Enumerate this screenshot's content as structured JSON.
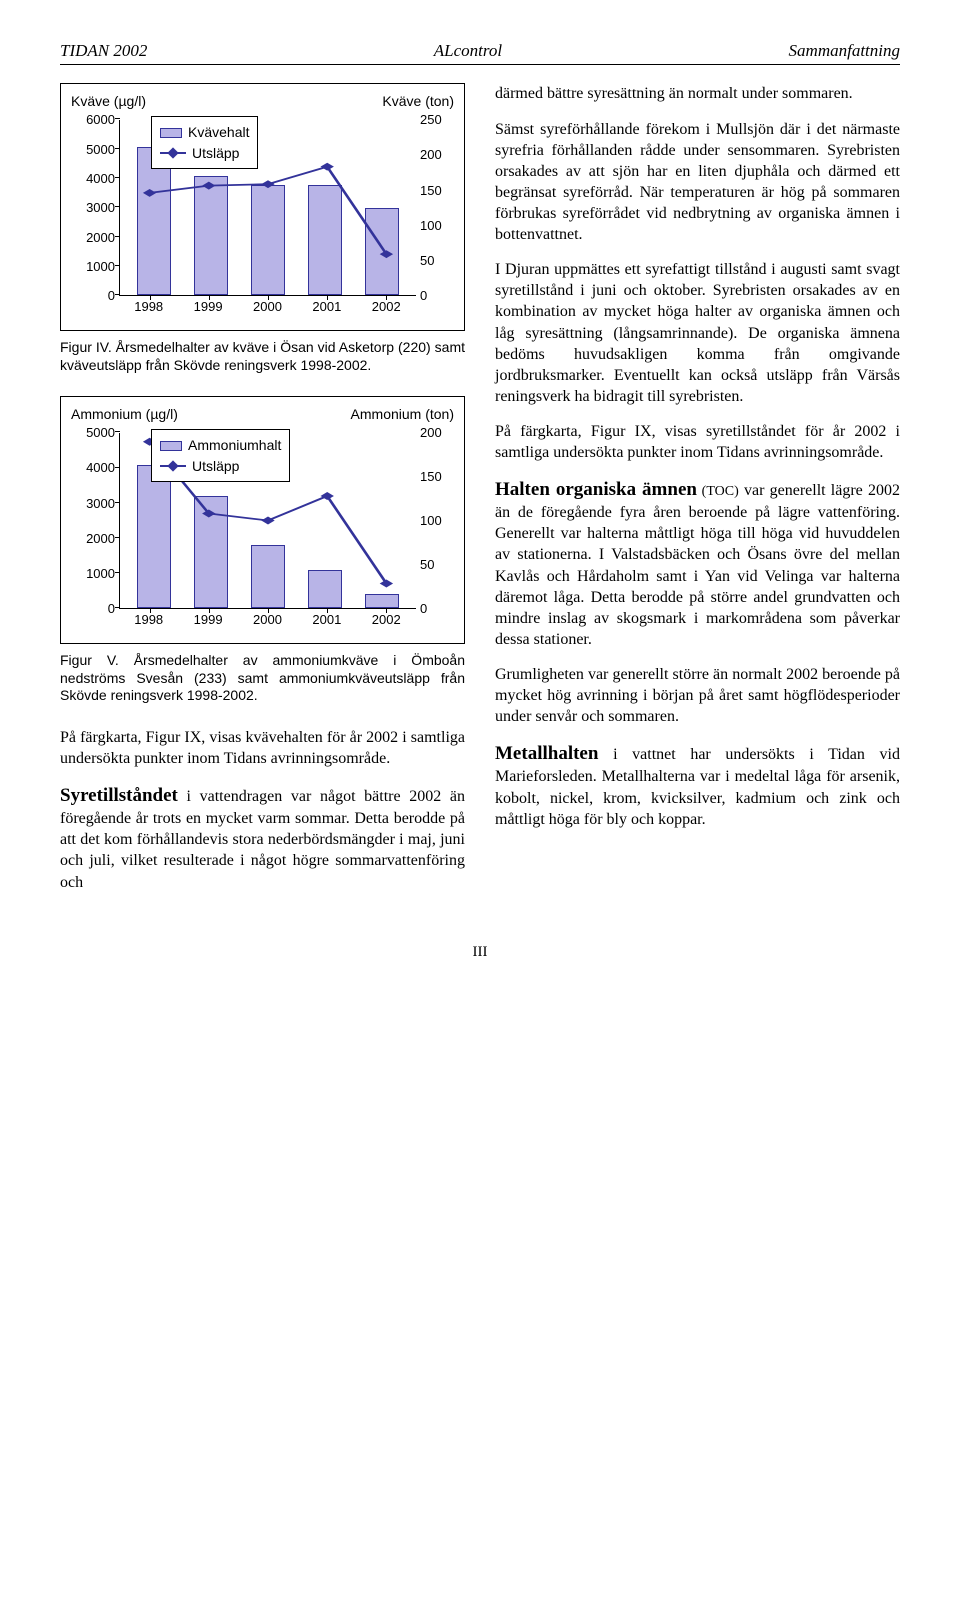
{
  "header": {
    "left": "TIDAN 2002",
    "center": "ALcontrol",
    "right": "Sammanfattning"
  },
  "chart1": {
    "title_left": "Kväve (µg/l)",
    "title_right": "Kväve (ton)",
    "legend_bar": "Kvävehalt",
    "legend_line": "Utsläpp",
    "years": [
      "1998",
      "1999",
      "2000",
      "2001",
      "2002"
    ],
    "bars": [
      5100,
      4100,
      3800,
      3800,
      3000
    ],
    "line": [
      3500,
      3750,
      3800,
      4400,
      1400
    ],
    "left_max": 6000,
    "left_step": 1000,
    "right_max": 250,
    "right_step": 50,
    "bar_color": "#b8b4e7",
    "bar_border": "#33339a",
    "line_color": "#33339a",
    "bg": "#ffffff"
  },
  "caption1": "Figur IV. Årsmedelhalter av kväve i Ösan vid Asketorp (220) samt kväveutsläpp från Skövde reningsverk 1998-2002.",
  "chart2": {
    "title_left": "Ammonium (µg/l)",
    "title_right": "Ammonium (ton)",
    "legend_bar": "Ammoniumhalt",
    "legend_line": "Utsläpp",
    "years": [
      "1998",
      "1999",
      "2000",
      "2001",
      "2002"
    ],
    "bars": [
      4100,
      3200,
      1800,
      1100,
      400
    ],
    "line": [
      4750,
      2700,
      2500,
      3200,
      700
    ],
    "left_max": 5000,
    "left_step": 1000,
    "right_max": 200,
    "right_step": 50,
    "bar_color": "#b8b4e7",
    "bar_border": "#33339a",
    "line_color": "#33339a",
    "bg": "#ffffff"
  },
  "caption2": "Figur V. Årsmedelhalter av ammoniumkväve i Ömboån nedströms Svesån (233) samt ammoniumkväveutsläpp från Skövde reningsverk 1998-2002.",
  "left_p1": "På färgkarta, Figur IX, visas kvävehalten för år 2002 i samtliga undersökta punkter inom Tidans avrinningsområde.",
  "left_p2_lead": "Syretillståndet",
  "left_p2_rest": " i vattendragen var något bättre 2002 än föregående år trots en mycket varm sommar. Detta berodde på att det kom förhållandevis stora nederbördsmängder i maj, juni och juli, vilket resulterade i något högre sommarvattenföring och",
  "right_p1": "därmed bättre syresättning än normalt under sommaren.",
  "right_p2": "Sämst syreförhållande förekom i Mullsjön där i det närmaste syrefria förhållanden rådde under sensommaren. Syrebristen orsakades av att sjön har en liten djuphåla och därmed ett begränsat syreförråd. När temperaturen är hög på sommaren förbrukas syreförrådet vid nedbrytning av organiska ämnen i bottenvattnet.",
  "right_p3": "I Djuran uppmättes ett syrefattigt tillstånd i augusti samt svagt syretillstånd i juni och oktober. Syrebristen orsakades av en kombination av mycket höga halter av organiska ämnen och låg syresättning (långsamrinnande). De organiska ämnena bedöms huvudsakligen komma från omgivande jordbruksmarker. Eventuellt kan också utsläpp från Värsås reningsverk ha bidragit till syrebristen.",
  "right_p4": "På färgkarta, Figur IX, visas syretillståndet för år 2002 i samtliga undersökta punkter inom Tidans avrinningsområde.",
  "right_p5_lead": "Halten organiska ämnen",
  "right_p5_paren": " (TOC)",
  "right_p5_rest": " var generellt lägre 2002 än de föregående fyra åren beroende på lägre vattenföring. Generellt var halterna måttligt höga till höga vid huvuddelen av stationerna. I Valstadsbäcken och Ösans övre del mellan Kavlås och Hårdaholm samt i Yan vid Velinga var halterna däremot låga. Detta berodde på större andel grundvatten och mindre inslag av skogsmark i markområdena som påverkar dessa stationer.",
  "right_p6": "Grumligheten var generellt större än normalt 2002 beroende på mycket hög avrinning i början på året samt högflödesperioder under senvår och sommaren.",
  "right_p7_lead": "Metallhalten",
  "right_p7_rest": " i vattnet har undersökts i Tidan vid Marieforsleden. Metallhalterna var i medeltal låga för arsenik, kobolt, nickel, krom, kvicksilver, kadmium och zink och måttligt höga för bly och koppar.",
  "page_num": "III"
}
